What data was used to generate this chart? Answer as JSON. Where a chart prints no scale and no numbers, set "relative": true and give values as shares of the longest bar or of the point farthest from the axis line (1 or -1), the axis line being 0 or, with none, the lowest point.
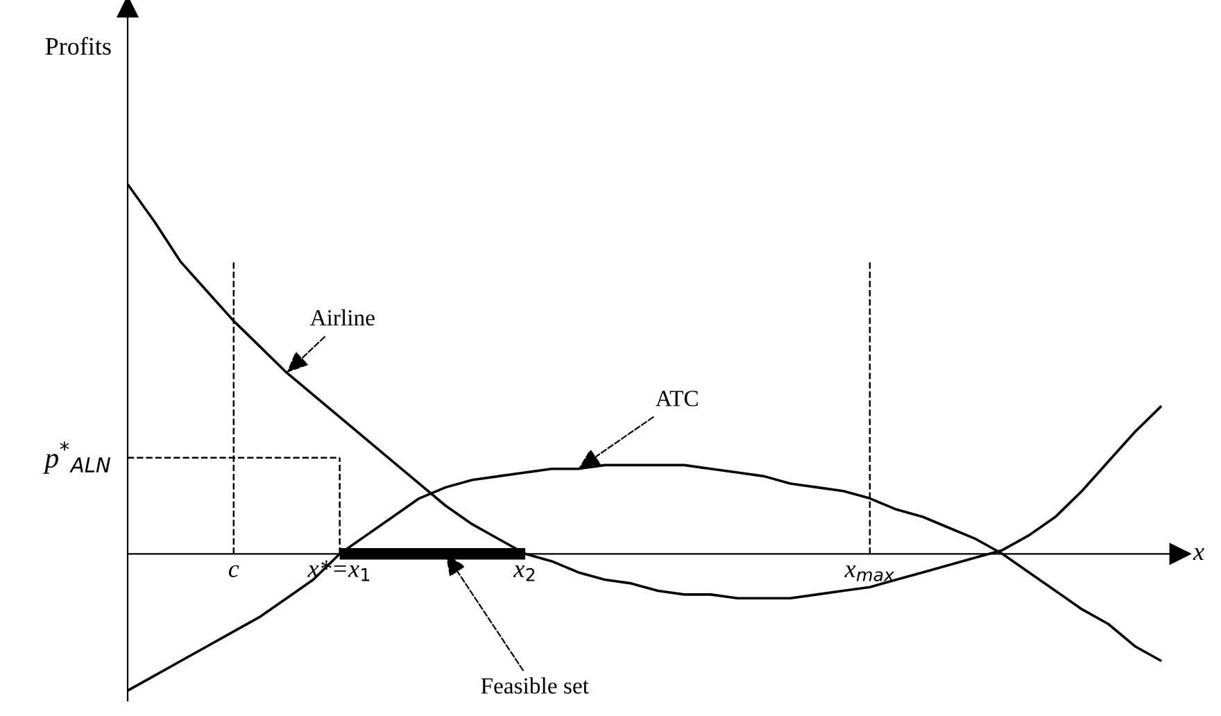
{
  "chart_data": {
    "type": "line",
    "relative": true,
    "annotations": [
      "Profits"
    ],
    "xlabel": "x",
    "categories": [
      null,
      null,
      null,
      null,
      "c",
      null,
      null,
      null,
      "x*=x$_{1}$",
      null,
      null,
      null,
      null,
      null,
      null,
      "x$_{2}$",
      null,
      null,
      null,
      null,
      null,
      null,
      null,
      null,
      null,
      null,
      null,
      null,
      "x$_{max}$",
      null,
      null,
      null,
      null,
      null,
      null,
      null,
      null,
      null,
      null,
      null
    ],
    "series": [
      {
        "name": "Airline",
        "color": "#000000",
        "values": [
          1.0,
          0.9,
          0.79,
          0.71,
          0.63,
          0.56,
          0.49,
          0.43,
          0.37,
          0.31,
          0.25,
          0.19,
          0.13,
          0.08,
          0.04,
          0.0,
          -0.02,
          -0.05,
          -0.07,
          -0.08,
          -0.1,
          -0.11,
          -0.11,
          -0.12,
          -0.12,
          -0.12,
          -0.11,
          -0.1,
          -0.09,
          -0.07,
          -0.05,
          -0.03,
          -0.01,
          0.01,
          0.05,
          0.1,
          0.17,
          0.25,
          0.33,
          0.4
        ]
      },
      {
        "name": "ATC",
        "color": "#000000",
        "values": [
          -0.37,
          -0.33,
          -0.29,
          -0.25,
          -0.21,
          -0.17,
          -0.12,
          -0.07,
          0.0,
          0.05,
          0.1,
          0.15,
          0.18,
          0.2,
          0.21,
          0.22,
          0.23,
          0.23,
          0.24,
          0.24,
          0.24,
          0.24,
          0.23,
          0.22,
          0.21,
          0.19,
          0.18,
          0.17,
          0.15,
          0.12,
          0.1,
          0.07,
          0.04,
          0.0,
          -0.05,
          -0.1,
          -0.15,
          -0.19,
          -0.25,
          -0.29
        ]
      },
      {
        "name": "Feasible set",
        "color": "#000000",
        "values": [
          null,
          null,
          null,
          null,
          null,
          null,
          null,
          null,
          0,
          0,
          0,
          0,
          0,
          0,
          0,
          0,
          null,
          null,
          null,
          null,
          null,
          null,
          null,
          null,
          null,
          null,
          null,
          null,
          null,
          null,
          null,
          null,
          null,
          null,
          null,
          null,
          null,
          null,
          null,
          null
        ]
      }
    ],
    "ref_lines": [
      {
        "axis": "x",
        "value": "c",
        "line_style": "dashed",
        "color": "#000000"
      },
      {
        "axis": "y",
        "value": 0.26,
        "label": "p$^{*}$$_{ALN}$",
        "line_style": "dashed",
        "color": "#000000"
      },
      {
        "axis": "x",
        "value": "x*=x$_{1}$",
        "line_style": "dashed",
        "color": "#000000"
      },
      {
        "axis": "x",
        "value": "x$_{max}$",
        "line_style": "dashed",
        "color": "#000000"
      }
    ],
    "line_style": "solid",
    "grid": false
  }
}
